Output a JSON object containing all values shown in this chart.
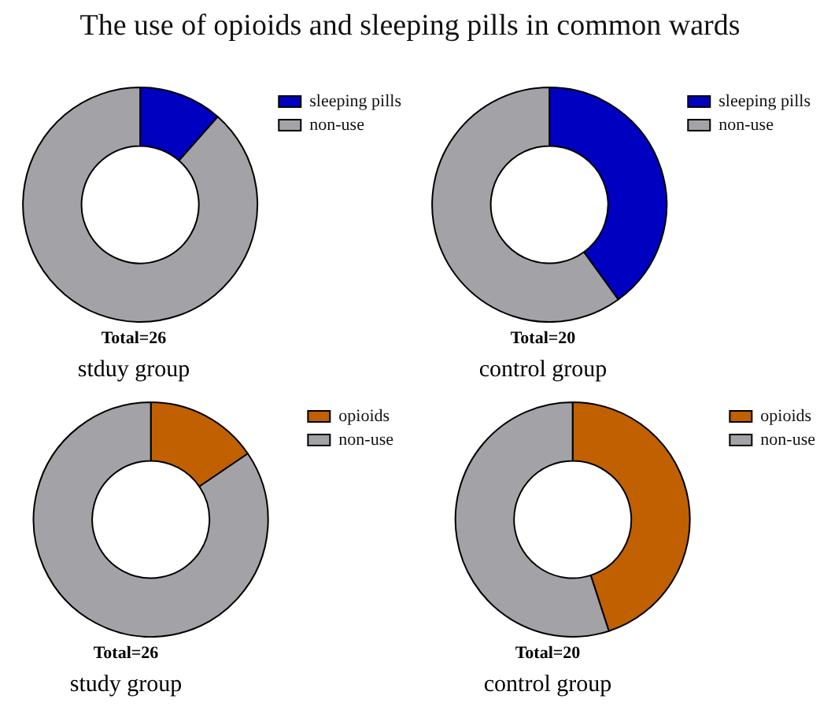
{
  "chart_data": [
    {
      "type": "donut",
      "title": "The use of opioids and sleeping pills in common wards",
      "categories": [
        "sleeping pills",
        "non-use"
      ],
      "values": [
        11.5,
        88.5
      ],
      "colors": [
        "#0000c0",
        "#a3a3a7"
      ],
      "legend": "top right",
      "annotations": [
        "Total=26",
        "stduy group"
      ]
    },
    {
      "type": "donut",
      "categories": [
        "sleeping pills",
        "non-use"
      ],
      "values": [
        40,
        60
      ],
      "colors": [
        "#0000c0",
        "#a3a3a7"
      ],
      "legend": "top right",
      "annotations": [
        "Total=20",
        "control group"
      ]
    },
    {
      "type": "donut",
      "categories": [
        "opioids",
        "non-use"
      ],
      "values": [
        15.5,
        84.5
      ],
      "colors": [
        "#c06000",
        "#a3a3a7"
      ],
      "legend": "top right",
      "annotations": [
        "Total=26",
        "study group"
      ]
    },
    {
      "type": "donut",
      "categories": [
        "opioids",
        "non-use"
      ],
      "values": [
        45,
        55
      ],
      "colors": [
        "#c06000",
        "#a3a3a7"
      ],
      "legend": "top right",
      "annotations": [
        "Total=20",
        "control group"
      ]
    }
  ]
}
